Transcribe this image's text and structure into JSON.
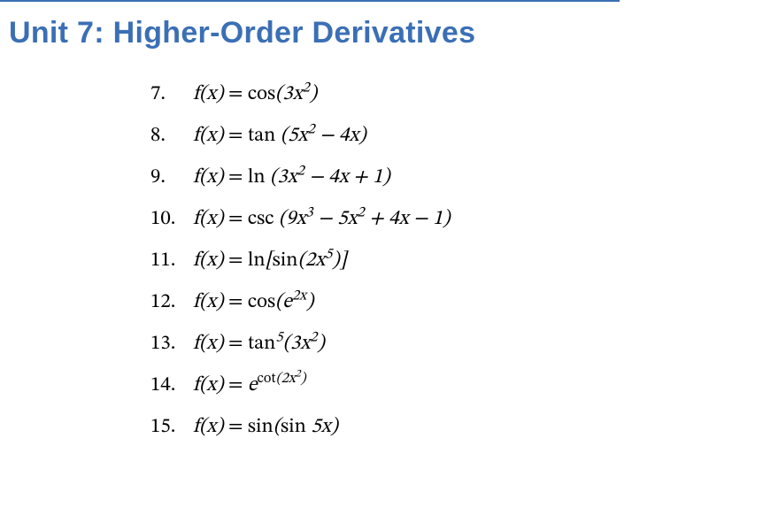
{
  "title": {
    "text": "Unit 7: Higher-Order Derivatives",
    "color": "#3b6fb5",
    "fontsize": 34
  },
  "header_rule_color": "#3b6fb5",
  "text_color": "#000000",
  "background_color": "#ffffff",
  "problem_fontsize": 23,
  "problems": [
    {
      "num": "7.",
      "lhs": "f(x)",
      "rhs_html": "<span class='fn'>cos</span>(3x<sup>2</sup>)"
    },
    {
      "num": "8.",
      "lhs": "f(x)",
      "rhs_html": "<span class='fn'>tan</span> (5x<sup>2</sup> − 4x)"
    },
    {
      "num": "9.",
      "lhs": "f(x)",
      "rhs_html": "<span class='fn'>ln</span> (3x<sup>2</sup> − 4x + 1)"
    },
    {
      "num": "10.",
      "lhs": "f(x)",
      "rhs_html": "<span class='fn'>csc</span> (9x<sup>3</sup> − 5x<sup>2</sup> + 4x − 1)"
    },
    {
      "num": "11.",
      "lhs": "f(x)",
      "rhs_html": "<span class='fn'>ln</span>[<span class='fn'>sin</span>(2x<sup>5</sup>)]"
    },
    {
      "num": "12.",
      "lhs": "f(x)",
      "rhs_html": "<span class='fn'>cos</span>(e<sup>2x</sup>)"
    },
    {
      "num": "13.",
      "lhs": "f(x)",
      "rhs_html": "<span class='fn'>tan</span><sup>5</sup>(3x<sup>2</sup>)"
    },
    {
      "num": "14.",
      "lhs": "f(x)",
      "rhs_html": "e<sup><span class='fn'>cot</span>(2x<sup>2</sup>)</sup>"
    },
    {
      "num": "15.",
      "lhs": "f(x)",
      "rhs_html": "<span class='fn'>sin</span>(<span class='fn'>sin</span> 5x)"
    }
  ]
}
